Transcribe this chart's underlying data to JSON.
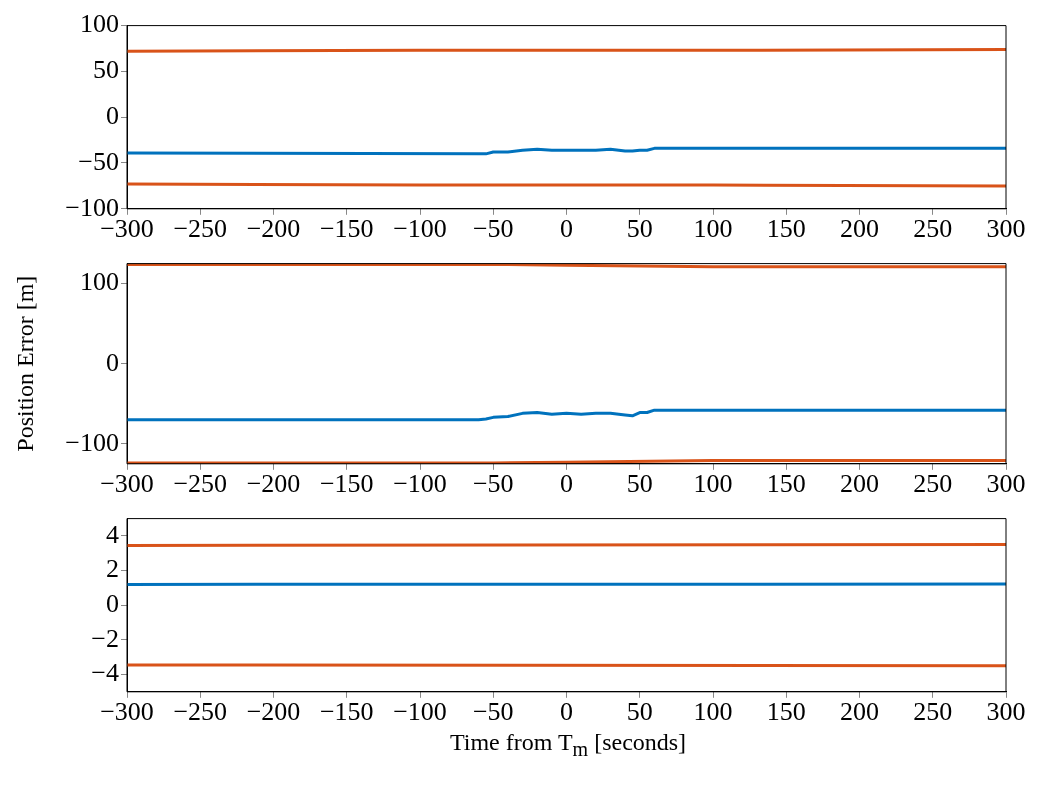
{
  "chart_data": [
    {
      "type": "line",
      "xlim": [
        -300,
        300
      ],
      "xticks": [
        -300,
        -250,
        -200,
        -150,
        -100,
        -50,
        0,
        50,
        100,
        150,
        200,
        250,
        300
      ],
      "ylim": [
        -100,
        100
      ],
      "yticks": [
        -100,
        -50,
        0,
        50,
        100
      ],
      "grid": false,
      "legend": false,
      "series": [
        {
          "color": "#d95319",
          "x": [
            -300,
            -100,
            0,
            100,
            300
          ],
          "values": [
            72,
            73,
            73,
            73,
            74
          ]
        },
        {
          "color": "#0072bd",
          "x": [
            -300,
            -60,
            -55,
            -50,
            -40,
            -30,
            -20,
            -10,
            0,
            10,
            20,
            30,
            40,
            45,
            50,
            55,
            60,
            300
          ],
          "values": [
            -39,
            -40,
            -40,
            -38,
            -38,
            -36,
            -35,
            -36,
            -36,
            -36,
            -36,
            -35,
            -37,
            -37,
            -36,
            -36,
            -34,
            -34
          ]
        },
        {
          "color": "#d95319",
          "x": [
            -300,
            -100,
            0,
            100,
            300
          ],
          "values": [
            -73,
            -74,
            -74,
            -74,
            -75
          ]
        }
      ]
    },
    {
      "type": "line",
      "ylabel": "Position Error [m]",
      "xlim": [
        -300,
        300
      ],
      "xticks": [
        -300,
        -250,
        -200,
        -150,
        -100,
        -50,
        0,
        50,
        100,
        150,
        200,
        250,
        300
      ],
      "ylim": [
        -125,
        125
      ],
      "yticks": [
        -100,
        0,
        100
      ],
      "grid": false,
      "legend": false,
      "series": [
        {
          "color": "#d95319",
          "x": [
            -300,
            -50,
            0,
            100,
            300
          ],
          "values": [
            124,
            124,
            123,
            121,
            121
          ]
        },
        {
          "color": "#0072bd",
          "x": [
            -300,
            -60,
            -55,
            -50,
            -40,
            -30,
            -20,
            -10,
            0,
            10,
            20,
            30,
            40,
            45,
            50,
            55,
            60,
            300
          ],
          "values": [
            -70,
            -70,
            -69,
            -67,
            -66,
            -62,
            -61,
            -63,
            -62,
            -63,
            -62,
            -62,
            -64,
            -65,
            -61,
            -61,
            -58,
            -58
          ]
        },
        {
          "color": "#d95319",
          "x": [
            -300,
            -50,
            0,
            100,
            300
          ],
          "values": [
            -124,
            -124,
            -123,
            -121,
            -121
          ]
        }
      ]
    },
    {
      "type": "line",
      "xlabel": "Time from T$_{m}$ [seconds]",
      "xlim": [
        -300,
        300
      ],
      "xticks": [
        -300,
        -250,
        -200,
        -150,
        -100,
        -50,
        0,
        50,
        100,
        150,
        200,
        250,
        300
      ],
      "ylim": [
        -5,
        5
      ],
      "yticks": [
        -4,
        -2,
        0,
        2,
        4
      ],
      "grid": false,
      "legend": false,
      "series": [
        {
          "color": "#d95319",
          "x": [
            -300,
            300
          ],
          "values": [
            3.45,
            3.5
          ]
        },
        {
          "color": "#0072bd",
          "x": [
            -300,
            300
          ],
          "values": [
            1.2,
            1.22
          ]
        },
        {
          "color": "#d95319",
          "x": [
            -300,
            300
          ],
          "values": [
            -3.45,
            -3.5
          ]
        }
      ]
    }
  ]
}
